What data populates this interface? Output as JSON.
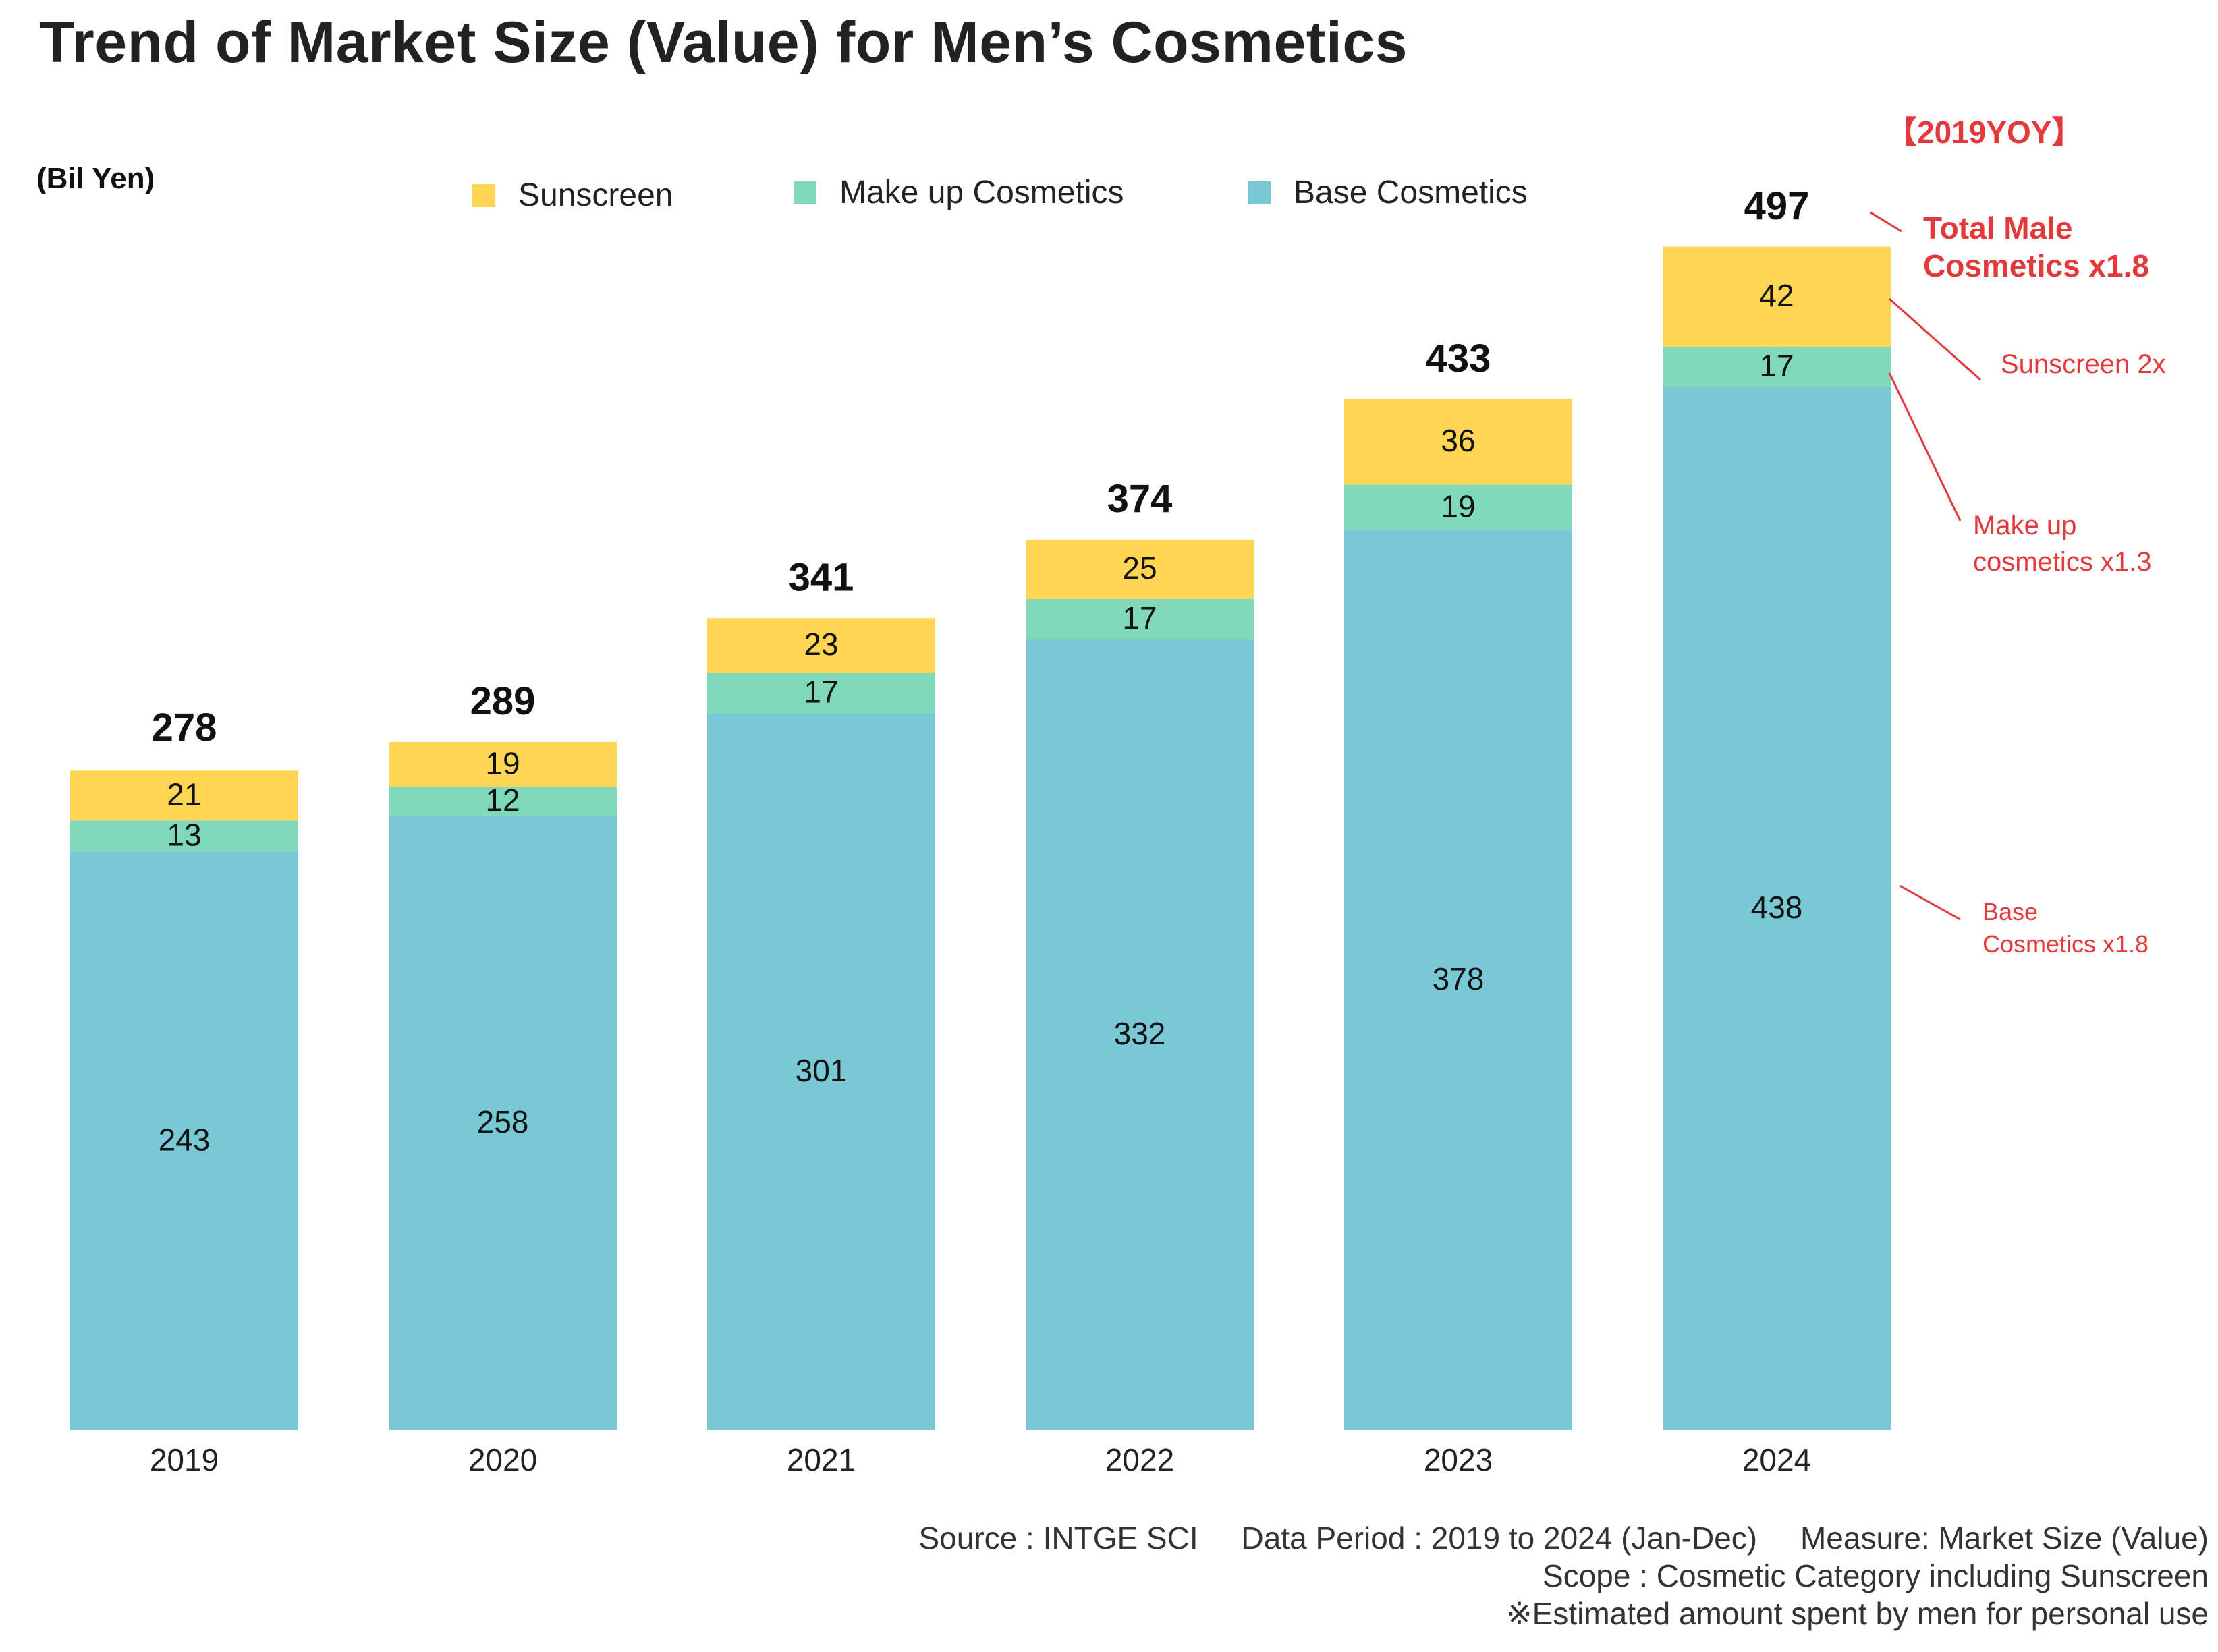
{
  "title": "Trend of Market Size (Value) for Men’s Cosmetics",
  "unit_label": "(Bil Yen)",
  "yoy_header": "【2019YOY】",
  "colors": {
    "sunscreen": "#FFD654",
    "makeup": "#7ED8B9",
    "base": "#78C8D5",
    "annotation": "#E5383B"
  },
  "chart_data": {
    "type": "bar",
    "stacked": true,
    "categories": [
      "2019",
      "2020",
      "2021",
      "2022",
      "2023",
      "2024"
    ],
    "series": [
      {
        "name": "Base Cosmetics",
        "key": "base",
        "values": [
          243,
          258,
          301,
          332,
          378,
          438
        ]
      },
      {
        "name": "Make up Cosmetics",
        "key": "makeup",
        "values": [
          13,
          12,
          17,
          17,
          19,
          17
        ]
      },
      {
        "name": "Sunscreen",
        "key": "sunscreen",
        "values": [
          21,
          19,
          23,
          25,
          36,
          42
        ]
      }
    ],
    "totals": [
      278,
      289,
      341,
      374,
      433,
      497
    ],
    "ylim": [
      0,
      500
    ],
    "ylabel": "(Bil Yen)",
    "legend_order": [
      "Sunscreen",
      "Make up Cosmetics",
      "Base Cosmetics"
    ],
    "legend_position": "top"
  },
  "annotations": {
    "total": "Total Male\nCosmetics x1.8",
    "sunscreen": "Sunscreen 2x",
    "makeup": "Make up\ncosmetics x1.3",
    "base": "Base\nCosmetics x1.8"
  },
  "source": {
    "line1": "Source : INTGE SCI     Data Period : 2019 to 2024 (Jan-Dec)     Measure: Market Size (Value)",
    "line2": "Scope : Cosmetic Category including Sunscreen",
    "line3": "※Estimated amount spent by men for personal use"
  }
}
